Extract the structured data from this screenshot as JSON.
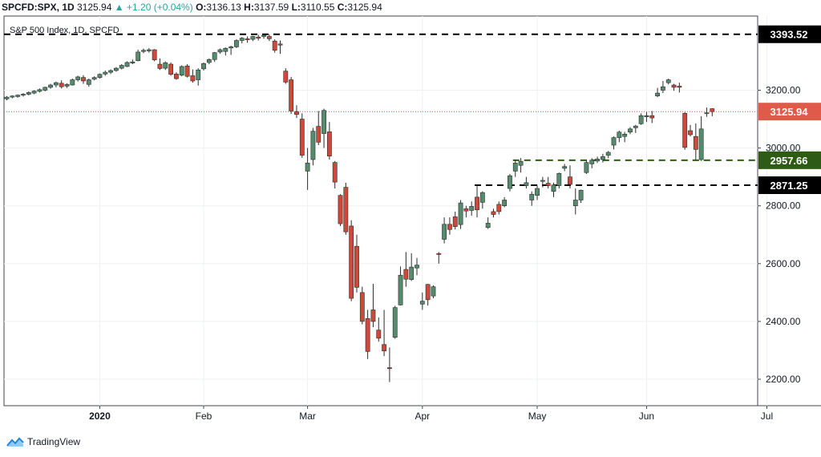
{
  "header": {
    "symbol": "SPCFD:SPX, 1D",
    "last": "3125.94",
    "change": "+1.20 (+0.04%)",
    "o_label": "O:",
    "o": "3136.13",
    "h_label": "H:",
    "h": "3137.59",
    "l_label": "L:",
    "l": "3110.55",
    "c_label": "C:",
    "c": "3125.94"
  },
  "logo": {
    "text": "TradingView"
  },
  "colors": {
    "up": "#558c6e",
    "down": "#cd4a3a",
    "current": "#e05a4a",
    "support": "#2e5c14",
    "level": "#000000"
  },
  "chart_data": {
    "type": "candlestick",
    "title": "S&P 500 Index, 1D, SPCFD",
    "ylim": [
      2160,
      3450
    ],
    "y_ticks": [
      2200,
      2400,
      2600,
      2800,
      3000,
      3200
    ],
    "y_tick_labels": [
      "2200.00",
      "2400.00",
      "2600.00",
      "2800.00",
      "3000.00",
      "3200.00"
    ],
    "x_ticks": [
      {
        "label": "2020",
        "index": 17
      },
      {
        "label": "Feb",
        "index": 36
      },
      {
        "label": "Mar",
        "index": 55
      },
      {
        "label": "Apr",
        "index": 76
      },
      {
        "label": "May",
        "index": 97
      },
      {
        "label": "Jun",
        "index": 117
      },
      {
        "label": "Jul",
        "index": 139
      }
    ],
    "levels": [
      {
        "value": 3393.52,
        "label": "3393.52",
        "style": "dashed",
        "kind": "level"
      },
      {
        "value": 3125.94,
        "label": "3125.94",
        "style": "dotted",
        "kind": "current"
      },
      {
        "value": 2957.66,
        "label": "2957.66",
        "style": "dashed",
        "kind": "support",
        "from_index": 93
      },
      {
        "value": 2871.25,
        "label": "2871.25",
        "style": "dashed",
        "kind": "level",
        "from_index": 86
      }
    ],
    "candles": [
      [
        3170,
        3180,
        3165,
        3176
      ],
      [
        3176,
        3182,
        3172,
        3180
      ],
      [
        3178,
        3185,
        3174,
        3183
      ],
      [
        3183,
        3190,
        3178,
        3186
      ],
      [
        3186,
        3196,
        3182,
        3192
      ],
      [
        3190,
        3200,
        3186,
        3197
      ],
      [
        3196,
        3206,
        3192,
        3202
      ],
      [
        3200,
        3212,
        3196,
        3210
      ],
      [
        3210,
        3222,
        3205,
        3218
      ],
      [
        3218,
        3230,
        3210,
        3226
      ],
      [
        3224,
        3234,
        3206,
        3212
      ],
      [
        3214,
        3224,
        3208,
        3220
      ],
      [
        3218,
        3240,
        3216,
        3236
      ],
      [
        3236,
        3250,
        3230,
        3246
      ],
      [
        3244,
        3252,
        3222,
        3232
      ],
      [
        3220,
        3240,
        3212,
        3236
      ],
      [
        3238,
        3248,
        3234,
        3244
      ],
      [
        3244,
        3258,
        3240,
        3255
      ],
      [
        3256,
        3268,
        3250,
        3262
      ],
      [
        3262,
        3272,
        3256,
        3268
      ],
      [
        3268,
        3280,
        3264,
        3276
      ],
      [
        3276,
        3290,
        3272,
        3286
      ],
      [
        3282,
        3300,
        3280,
        3296
      ],
      [
        3294,
        3306,
        3290,
        3298
      ],
      [
        3302,
        3340,
        3300,
        3332
      ],
      [
        3334,
        3344,
        3328,
        3338
      ],
      [
        3336,
        3346,
        3330,
        3340
      ],
      [
        3340,
        3342,
        3300,
        3305
      ],
      [
        3290,
        3310,
        3270,
        3275
      ],
      [
        3276,
        3300,
        3270,
        3295
      ],
      [
        3290,
        3296,
        3250,
        3255
      ],
      [
        3256,
        3262,
        3236,
        3240
      ],
      [
        3252,
        3286,
        3248,
        3282
      ],
      [
        3284,
        3290,
        3244,
        3248
      ],
      [
        3250,
        3272,
        3226,
        3232
      ],
      [
        3236,
        3276,
        3216,
        3270
      ],
      [
        3274,
        3296,
        3268,
        3292
      ],
      [
        3296,
        3310,
        3290,
        3306
      ],
      [
        3306,
        3332,
        3298,
        3330
      ],
      [
        3332,
        3344,
        3326,
        3340
      ],
      [
        3334,
        3348,
        3320,
        3345
      ],
      [
        3346,
        3354,
        3322,
        3350
      ],
      [
        3350,
        3376,
        3346,
        3372
      ],
      [
        3372,
        3384,
        3362,
        3380
      ],
      [
        3378,
        3386,
        3364,
        3376
      ],
      [
        3376,
        3388,
        3370,
        3386
      ],
      [
        3384,
        3392,
        3372,
        3380
      ],
      [
        3386,
        3394,
        3378,
        3390
      ],
      [
        3386,
        3393,
        3370,
        3378
      ],
      [
        3370,
        3376,
        3330,
        3338
      ],
      [
        3360,
        3372,
        3326,
        3356
      ],
      [
        3266,
        3276,
        3222,
        3228
      ],
      [
        3236,
        3246,
        3118,
        3128
      ],
      [
        3126,
        3148,
        3104,
        3116
      ],
      [
        3100,
        3120,
        2966,
        2975
      ],
      [
        2920,
        3000,
        2855,
        2948
      ],
      [
        2960,
        3070,
        2940,
        3058
      ],
      [
        3075,
        3128,
        3010,
        3020
      ],
      [
        3050,
        3136,
        3000,
        3130
      ],
      [
        3056,
        3090,
        2960,
        2972
      ],
      [
        2950,
        2955,
        2860,
        2882
      ],
      [
        2836,
        2840,
        2730,
        2738
      ],
      [
        2864,
        2880,
        2700,
        2710
      ],
      [
        2730,
        2750,
        2470,
        2480
      ],
      [
        2660,
        2700,
        2500,
        2518
      ],
      [
        2500,
        2520,
        2390,
        2400
      ],
      [
        2410,
        2440,
        2270,
        2296
      ],
      [
        2440,
        2530,
        2380,
        2400
      ],
      [
        2370,
        2414,
        2330,
        2342
      ],
      [
        2320,
        2440,
        2280,
        2298
      ],
      [
        2240,
        2310,
        2190,
        2237
      ],
      [
        2345,
        2454,
        2340,
        2448
      ],
      [
        2457,
        2590,
        2455,
        2560
      ],
      [
        2580,
        2640,
        2520,
        2546
      ],
      [
        2545,
        2636,
        2540,
        2588
      ],
      [
        2585,
        2620,
        2560,
        2595
      ],
      [
        2460,
        2500,
        2440,
        2470
      ],
      [
        2528,
        2530,
        2455,
        2475
      ],
      [
        2488,
        2525,
        2480,
        2520
      ],
      [
        2635,
        2640,
        2600,
        2632
      ],
      [
        2684,
        2760,
        2670,
        2736
      ],
      [
        2736,
        2760,
        2700,
        2718
      ],
      [
        2762,
        2780,
        2718,
        2728
      ],
      [
        2735,
        2820,
        2720,
        2810
      ],
      [
        2790,
        2800,
        2760,
        2782
      ],
      [
        2784,
        2815,
        2766,
        2798
      ],
      [
        2830,
        2868,
        2760,
        2786
      ],
      [
        2812,
        2850,
        2790,
        2846
      ],
      [
        2725,
        2760,
        2720,
        2740
      ],
      [
        2780,
        2790,
        2760,
        2770
      ],
      [
        2805,
        2815,
        2770,
        2780
      ],
      [
        2800,
        2830,
        2795,
        2820
      ],
      [
        2860,
        2910,
        2850,
        2904
      ],
      [
        2920,
        2960,
        2900,
        2948
      ],
      [
        2940,
        2965,
        2915,
        2954
      ],
      [
        2870,
        2900,
        2860,
        2880
      ],
      [
        2820,
        2850,
        2800,
        2840
      ],
      [
        2836,
        2870,
        2820,
        2860
      ],
      [
        2885,
        2900,
        2864,
        2888
      ],
      [
        2878,
        2900,
        2860,
        2870
      ],
      [
        2850,
        2880,
        2830,
        2872
      ],
      [
        2870,
        2915,
        2860,
        2912
      ],
      [
        2930,
        2945,
        2920,
        2936
      ],
      [
        2900,
        2940,
        2860,
        2874
      ],
      [
        2800,
        2860,
        2770,
        2820
      ],
      [
        2820,
        2856,
        2810,
        2854
      ],
      [
        2915,
        2960,
        2910,
        2950
      ],
      [
        2945,
        2965,
        2930,
        2958
      ],
      [
        2955,
        2970,
        2948,
        2962
      ],
      [
        2960,
        2980,
        2950,
        2970
      ],
      [
        2975,
        2990,
        2965,
        2985
      ],
      [
        3010,
        3040,
        2995,
        3036
      ],
      [
        3036,
        3060,
        3020,
        3055
      ],
      [
        3040,
        3056,
        3020,
        3048
      ],
      [
        3055,
        3072,
        3048,
        3066
      ],
      [
        3070,
        3080,
        3052,
        3076
      ],
      [
        3084,
        3120,
        3080,
        3112
      ],
      [
        3108,
        3124,
        3090,
        3112
      ],
      [
        3112,
        3128,
        3086,
        3104
      ],
      [
        3180,
        3208,
        3176,
        3190
      ],
      [
        3200,
        3232,
        3190,
        3212
      ],
      [
        3226,
        3240,
        3220,
        3236
      ],
      [
        3218,
        3222,
        3198,
        3210
      ],
      [
        3214,
        3226,
        3192,
        3210
      ],
      [
        3120,
        3124,
        2994,
        3002
      ],
      [
        3060,
        3080,
        3040,
        3046
      ],
      [
        3040,
        3085,
        2960,
        2995
      ],
      [
        2960,
        3110,
        2955,
        3066
      ],
      [
        3120,
        3140,
        3108,
        3122
      ],
      [
        3136,
        3138,
        3110,
        3126
      ]
    ]
  }
}
